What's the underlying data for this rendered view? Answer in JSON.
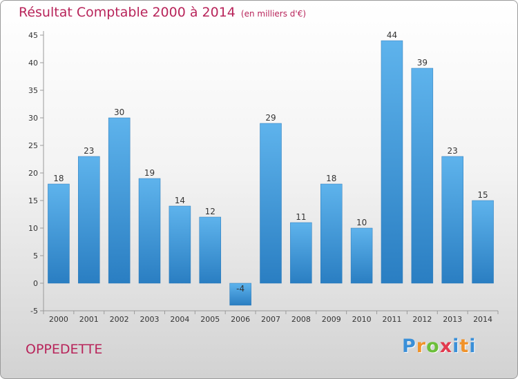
{
  "title": "Résultat Comptable 2000 à 2014",
  "title_unit": "(en milliers d'€)",
  "commune": "OPPEDETTE",
  "brand": {
    "letters": [
      "P",
      "r",
      "o",
      "x",
      "i",
      "t",
      "i"
    ],
    "colors": [
      "#3a8fd8",
      "#f0932b",
      "#6cbf3a",
      "#e23a4e",
      "#3a8fd8",
      "#f0932b",
      "#3a8fd8"
    ]
  },
  "colors": {
    "bar_top": "#5eb3ec",
    "bar_bottom": "#2a7ec2",
    "title": "#b8245a",
    "axis": "#9a9a9a"
  },
  "chart_data": {
    "type": "bar",
    "categories": [
      "2000",
      "2001",
      "2002",
      "2003",
      "2004",
      "2005",
      "2006",
      "2007",
      "2008",
      "2009",
      "2010",
      "2011",
      "2012",
      "2013",
      "2014"
    ],
    "values": [
      18,
      23,
      30,
      19,
      14,
      12,
      -4,
      29,
      11,
      18,
      10,
      44,
      39,
      23,
      15
    ],
    "value_labels": [
      "18",
      "23",
      "30",
      "19",
      "14",
      "12",
      "-4",
      "29",
      "11",
      "18",
      "10",
      "44",
      "39",
      "23",
      "15"
    ],
    "y_ticks": [
      "-5",
      "0",
      "5",
      "10",
      "15",
      "20",
      "25",
      "30",
      "35",
      "40",
      "45"
    ],
    "ylim": [
      -5,
      45
    ],
    "grid": false,
    "title": "Résultat Comptable 2000 à 2014",
    "xlabel": "",
    "ylabel": ""
  }
}
